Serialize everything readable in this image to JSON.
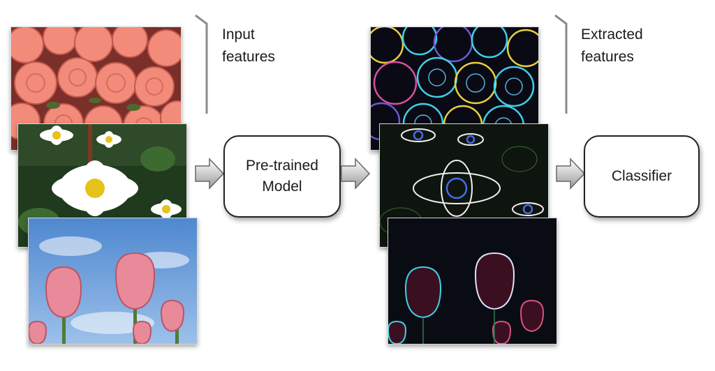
{
  "labels": {
    "input": "Input\nfeatures",
    "extracted": "Extracted\nfeatures"
  },
  "boxes": {
    "model": "Pre-trained\nModel",
    "classifier": "Classifier"
  },
  "colors": {
    "box_border": "#222222",
    "arrow_fill_light": "#ffffff",
    "arrow_fill_dark": "#9a9a9a",
    "rose": "#f28b7a",
    "daisy_center": "#e6c21a",
    "tulip": "#e98a9a",
    "sky": "#6f9fd8",
    "edge_cyan": "#3fd0e8",
    "edge_yellow": "#e8d040"
  },
  "icons": [
    "arrow-right-icon"
  ]
}
